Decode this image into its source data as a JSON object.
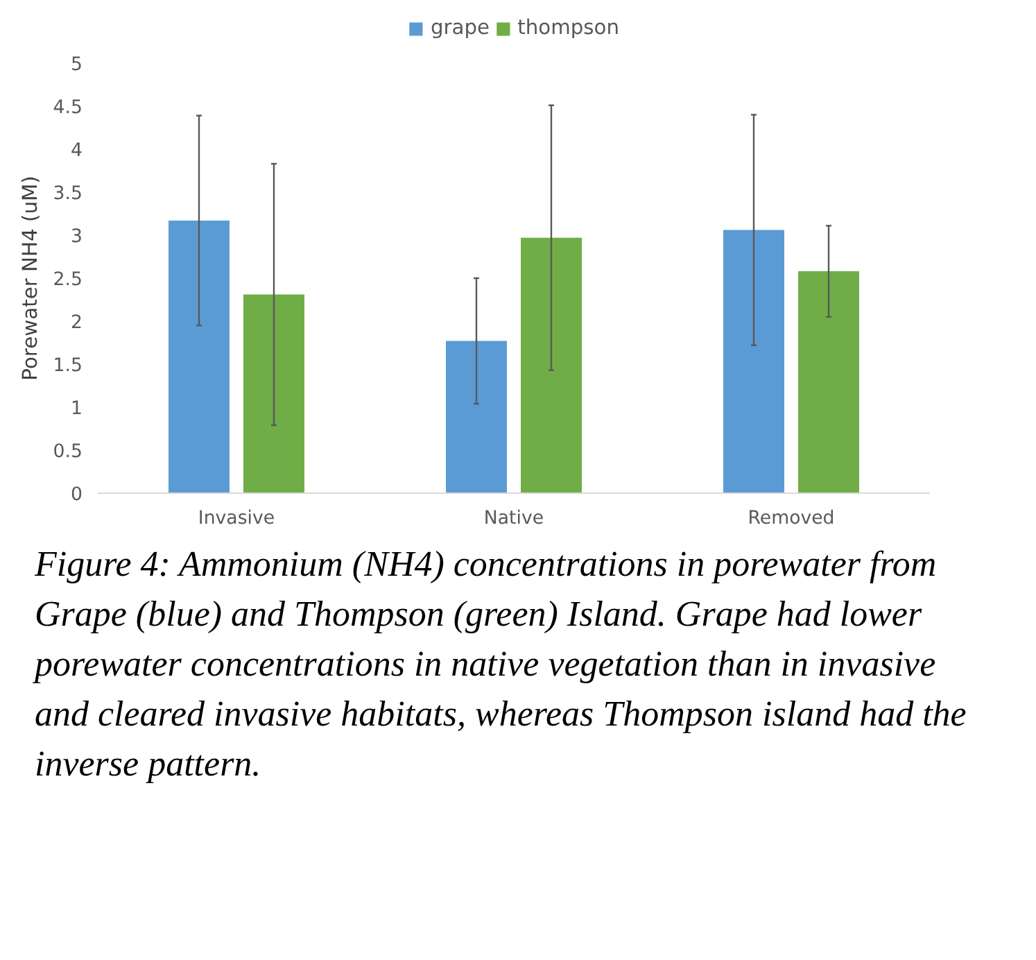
{
  "chart_data": {
    "type": "bar",
    "ylabel": "Porewater NH4 (uM)",
    "categories": [
      "Invasive",
      "Native",
      "Removed"
    ],
    "series": [
      {
        "name": "grape",
        "color": "#5b9bd5",
        "values": [
          3.17,
          1.77,
          3.06
        ],
        "errors": [
          1.22,
          0.73,
          1.34
        ]
      },
      {
        "name": "thompson",
        "color": "#70ad47",
        "values": [
          2.31,
          2.97,
          2.58
        ],
        "errors": [
          1.52,
          1.54,
          0.53
        ]
      }
    ],
    "ylim": [
      0,
      5
    ],
    "yticks": [
      0,
      0.5,
      1,
      1.5,
      2,
      2.5,
      3,
      3.5,
      4,
      4.5,
      5
    ],
    "grid": false,
    "legend": "top",
    "annotations": [
      "Figure 4: Ammonium (NH4) concentrations in porewater from Grape (blue) and Thompson (green) Island. Grape had lower porewater concentrations in native vegetation than in invasive and cleared invasive habitats, whereas Thompson island had the inverse pattern."
    ]
  }
}
